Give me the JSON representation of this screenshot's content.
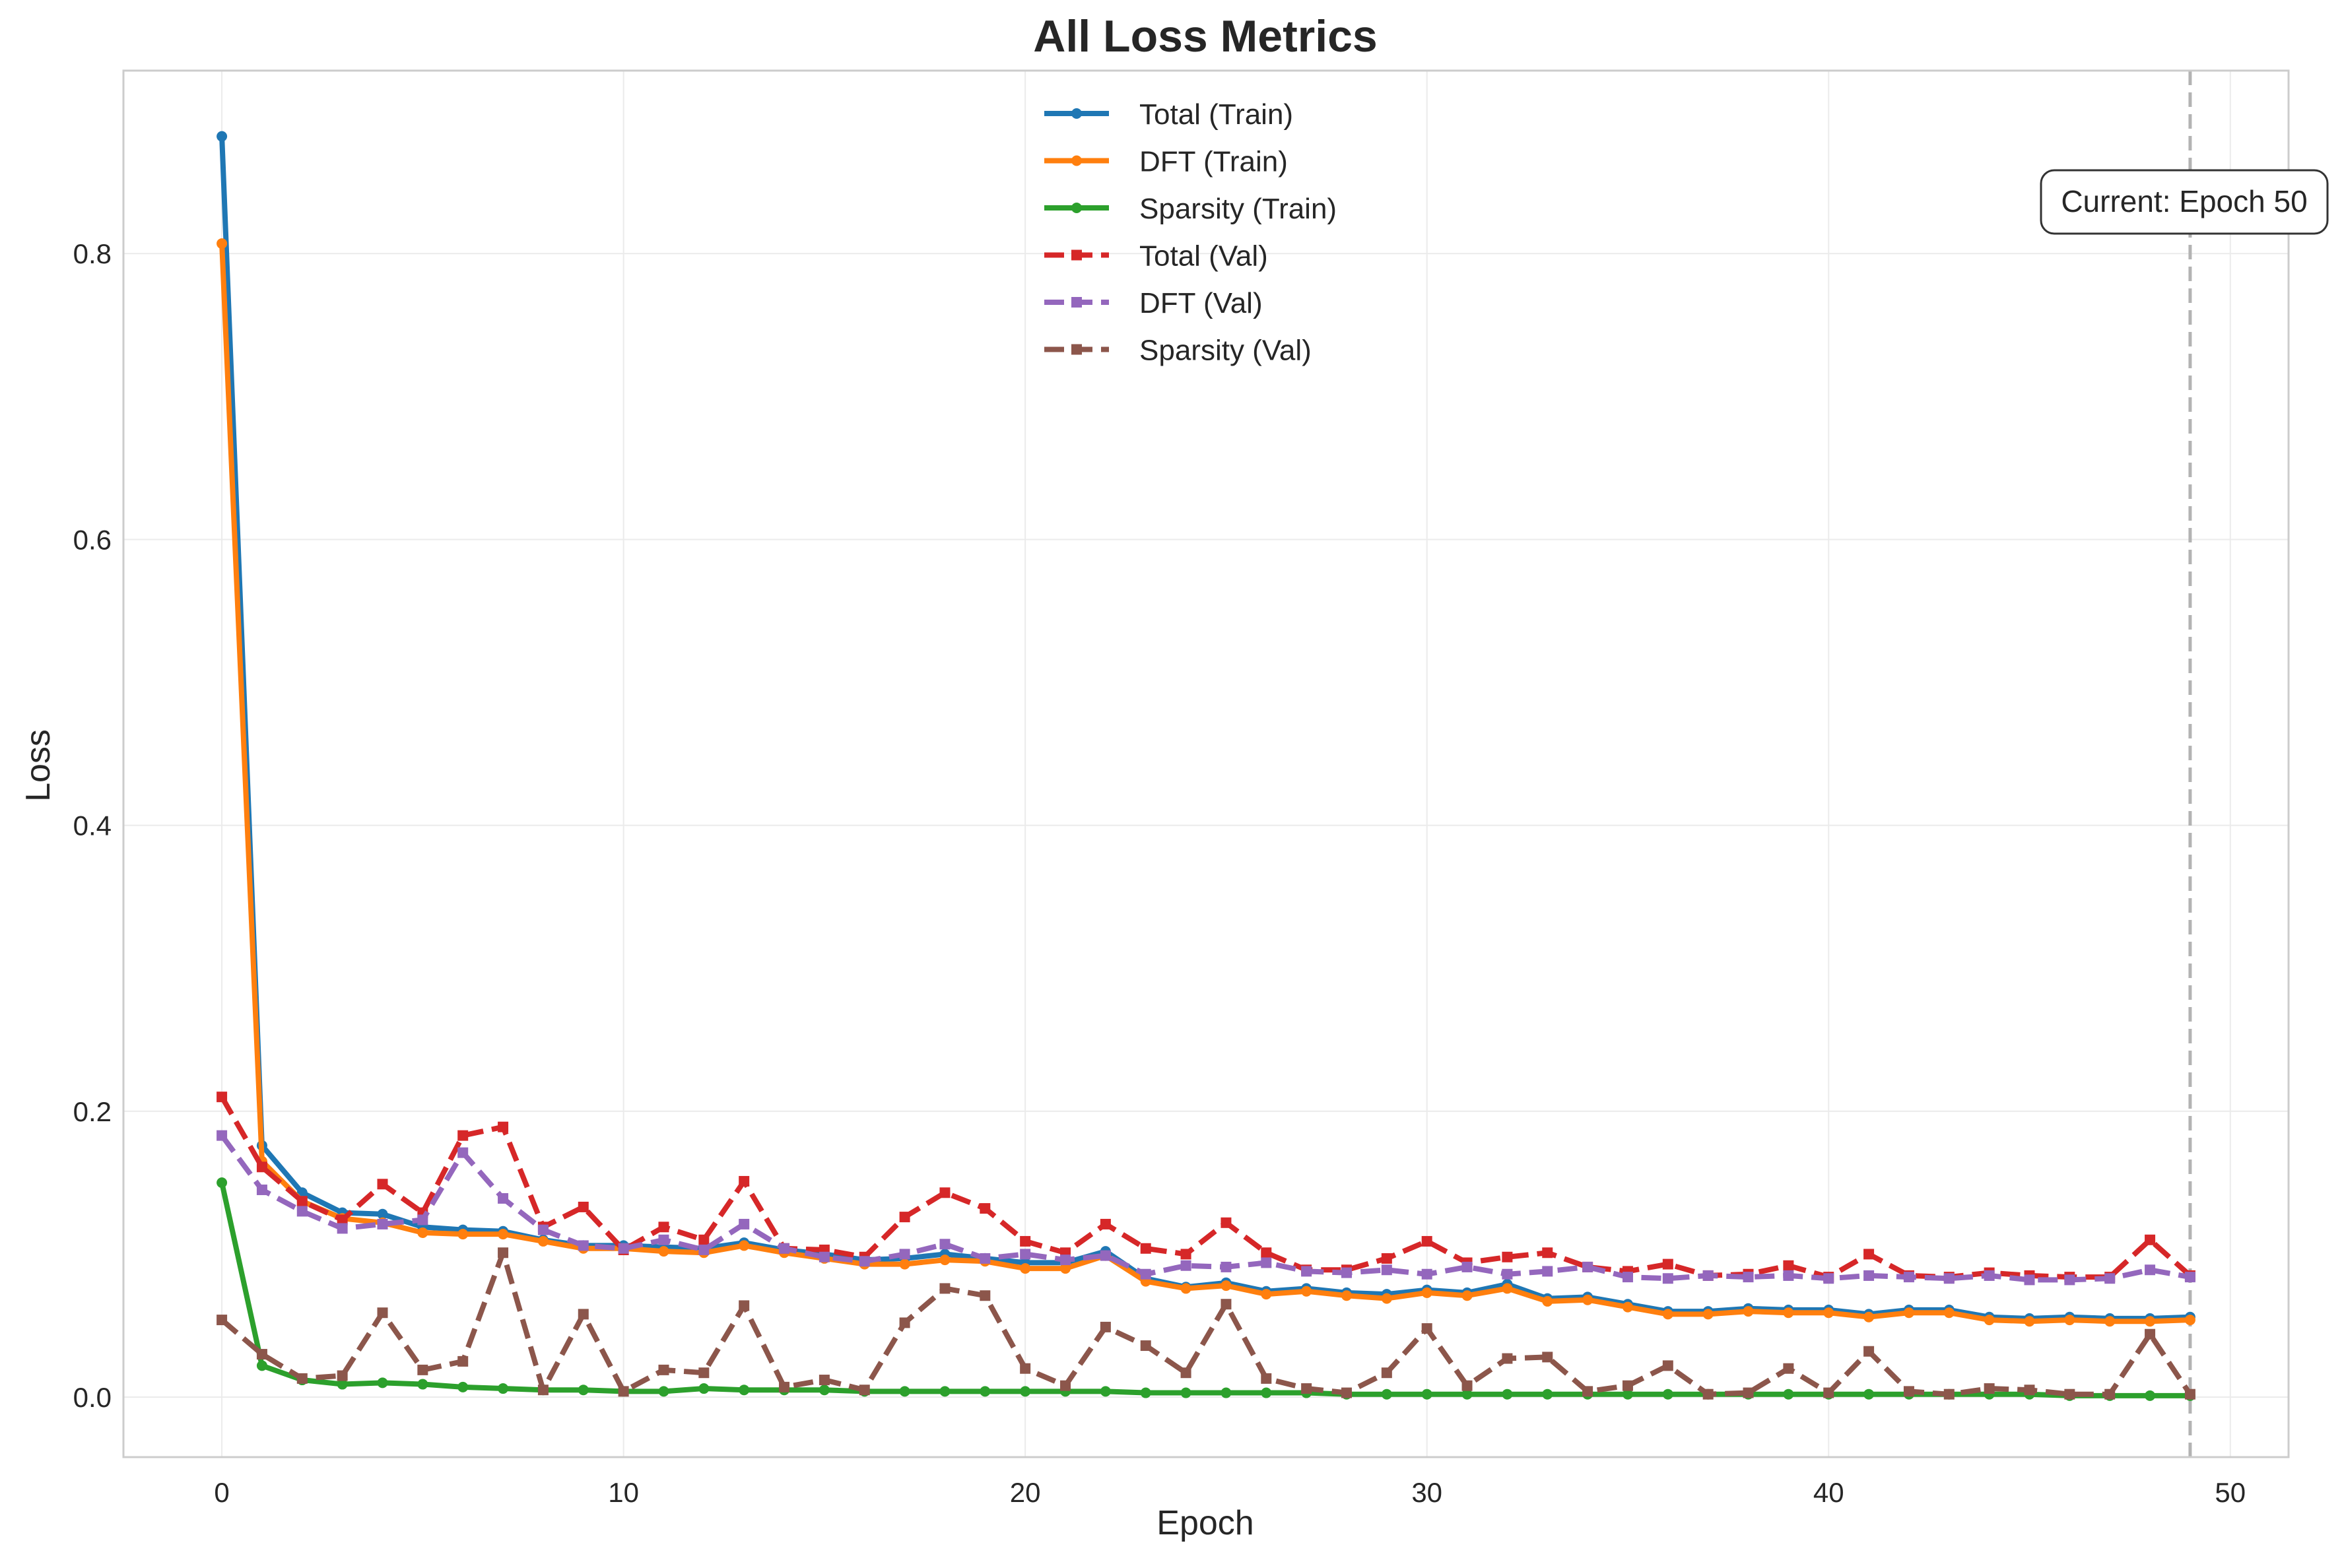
{
  "chart_data": {
    "type": "line",
    "title": "All Loss Metrics",
    "xlabel": "Epoch",
    "ylabel": "Loss",
    "xlim": [
      -2.45,
      51.45
    ],
    "ylim": [
      -0.042,
      0.928
    ],
    "xticks": [
      0,
      10,
      20,
      30,
      40,
      50
    ],
    "yticks": [
      0.0,
      0.2,
      0.4,
      0.6,
      0.8
    ],
    "xtick_labels": [
      "0",
      "10",
      "20",
      "30",
      "40",
      "50"
    ],
    "ytick_labels": [
      "0.0",
      "0.2",
      "0.4",
      "0.6",
      "0.8"
    ],
    "grid": true,
    "legend_placement": "upper center",
    "annotation": {
      "text": "Current: Epoch 50",
      "epoch_line": 49
    },
    "x": [
      0,
      1,
      2,
      3,
      4,
      5,
      6,
      7,
      8,
      9,
      10,
      11,
      12,
      13,
      14,
      15,
      16,
      17,
      18,
      19,
      20,
      21,
      22,
      23,
      24,
      25,
      26,
      27,
      28,
      29,
      30,
      31,
      32,
      33,
      34,
      35,
      36,
      37,
      38,
      39,
      40,
      41,
      42,
      43,
      44,
      45,
      46,
      47,
      48,
      49
    ],
    "series": [
      {
        "name": "Total (Train)",
        "color": "#1f77b4",
        "style": "solid",
        "marker": "circle",
        "values": [
          0.882,
          0.176,
          0.143,
          0.129,
          0.128,
          0.119,
          0.117,
          0.116,
          0.11,
          0.106,
          0.106,
          0.105,
          0.104,
          0.108,
          0.103,
          0.1,
          0.096,
          0.097,
          0.1,
          0.097,
          0.094,
          0.094,
          0.102,
          0.083,
          0.077,
          0.08,
          0.074,
          0.076,
          0.073,
          0.072,
          0.075,
          0.073,
          0.079,
          0.069,
          0.07,
          0.065,
          0.06,
          0.06,
          0.062,
          0.061,
          0.061,
          0.058,
          0.061,
          0.061,
          0.056,
          0.055,
          0.056,
          0.055,
          0.055,
          0.056
        ]
      },
      {
        "name": "DFT (Train)",
        "color": "#ff7f0e",
        "style": "solid",
        "marker": "circle",
        "values": [
          0.807,
          0.165,
          0.137,
          0.125,
          0.122,
          0.115,
          0.114,
          0.114,
          0.109,
          0.104,
          0.104,
          0.102,
          0.101,
          0.106,
          0.101,
          0.097,
          0.093,
          0.093,
          0.096,
          0.095,
          0.09,
          0.09,
          0.099,
          0.081,
          0.076,
          0.078,
          0.072,
          0.074,
          0.071,
          0.069,
          0.073,
          0.071,
          0.076,
          0.067,
          0.068,
          0.063,
          0.058,
          0.058,
          0.06,
          0.059,
          0.059,
          0.056,
          0.059,
          0.059,
          0.054,
          0.053,
          0.054,
          0.053,
          0.053,
          0.054
        ]
      },
      {
        "name": "Sparsity (Train)",
        "color": "#2ca02c",
        "style": "solid",
        "marker": "circle",
        "values": [
          0.15,
          0.022,
          0.012,
          0.009,
          0.01,
          0.009,
          0.007,
          0.006,
          0.005,
          0.005,
          0.004,
          0.004,
          0.006,
          0.005,
          0.005,
          0.005,
          0.004,
          0.004,
          0.004,
          0.004,
          0.004,
          0.004,
          0.004,
          0.003,
          0.003,
          0.003,
          0.003,
          0.003,
          0.002,
          0.002,
          0.002,
          0.002,
          0.002,
          0.002,
          0.002,
          0.002,
          0.002,
          0.002,
          0.002,
          0.002,
          0.002,
          0.002,
          0.002,
          0.002,
          0.002,
          0.002,
          0.001,
          0.001,
          0.001,
          0.001
        ]
      },
      {
        "name": "Total (Val)",
        "color": "#d62728",
        "style": "dashed",
        "marker": "square",
        "values": [
          0.21,
          0.161,
          0.137,
          0.124,
          0.149,
          0.129,
          0.183,
          0.189,
          0.119,
          0.133,
          0.103,
          0.119,
          0.11,
          0.151,
          0.104,
          0.103,
          0.098,
          0.126,
          0.143,
          0.132,
          0.109,
          0.101,
          0.121,
          0.104,
          0.1,
          0.122,
          0.101,
          0.089,
          0.089,
          0.097,
          0.109,
          0.094,
          0.098,
          0.101,
          0.091,
          0.088,
          0.093,
          0.085,
          0.086,
          0.092,
          0.084,
          0.1,
          0.085,
          0.084,
          0.087,
          0.085,
          0.084,
          0.084,
          0.11,
          0.085
        ]
      },
      {
        "name": "DFT (Val)",
        "color": "#9467bd",
        "style": "dashed",
        "marker": "square",
        "values": [
          0.183,
          0.145,
          0.13,
          0.118,
          0.121,
          0.124,
          0.171,
          0.139,
          0.117,
          0.106,
          0.104,
          0.11,
          0.103,
          0.121,
          0.104,
          0.098,
          0.095,
          0.1,
          0.107,
          0.097,
          0.1,
          0.096,
          0.099,
          0.086,
          0.092,
          0.091,
          0.094,
          0.088,
          0.087,
          0.089,
          0.086,
          0.091,
          0.086,
          0.088,
          0.091,
          0.084,
          0.083,
          0.085,
          0.084,
          0.085,
          0.083,
          0.085,
          0.084,
          0.083,
          0.085,
          0.082,
          0.082,
          0.083,
          0.089,
          0.084
        ]
      },
      {
        "name": "Sparsity (Val)",
        "color": "#8c564b",
        "style": "dashed",
        "marker": "square",
        "values": [
          0.054,
          0.03,
          0.013,
          0.015,
          0.059,
          0.019,
          0.025,
          0.101,
          0.005,
          0.058,
          0.004,
          0.019,
          0.017,
          0.064,
          0.007,
          0.012,
          0.005,
          0.052,
          0.076,
          0.071,
          0.02,
          0.008,
          0.049,
          0.036,
          0.017,
          0.065,
          0.013,
          0.006,
          0.003,
          0.017,
          0.048,
          0.008,
          0.027,
          0.028,
          0.004,
          0.008,
          0.022,
          0.002,
          0.003,
          0.02,
          0.003,
          0.032,
          0.004,
          0.002,
          0.006,
          0.005,
          0.002,
          0.002,
          0.044,
          0.002
        ]
      }
    ]
  }
}
